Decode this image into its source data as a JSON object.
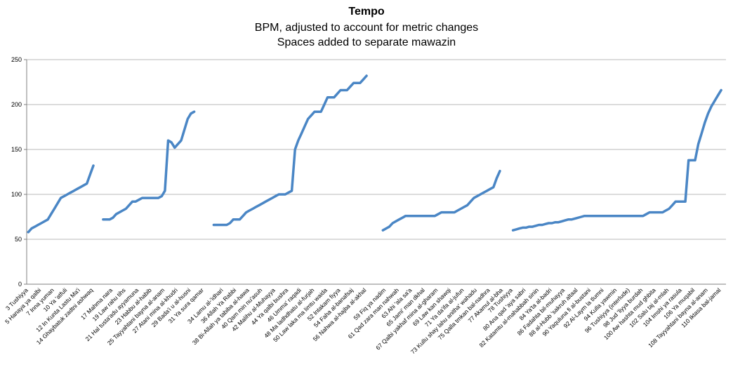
{
  "chart_data": {
    "type": "line",
    "title": "Tempo",
    "subtitle_lines": [
      "BPM, adjusted to account for metric changes",
      "Spaces added to separate mawazin"
    ],
    "ylim": [
      0,
      250
    ],
    "yticks": [
      0,
      50,
      100,
      150,
      200,
      250
    ],
    "grid": true,
    "legend": "none",
    "line_color": "#4a86c5",
    "x_labels": [
      "3 Tushiyya",
      "5 Hanaya ya qalbi",
      "7 Inna yuman",
      "10 Ya 'atfuli",
      "12 In Kunta Lastu Ma'i",
      "14 Ghaybatuk zadtni ashwaq",
      "17 Mahma nara",
      "19 Law rahu tihs",
      "21 Hal tusta'adu ayyamuna",
      "23 Habbu al-habib",
      "25 Tayyahtani bayna al-anam",
      "27 Atani mina al-khudri",
      "29 Bada'i u al-husni",
      "31 Ya sura qamar",
      "34 Lamu al-'idhari",
      "36 Allah Ya Rabbi",
      "38 Bi-Allah ya tabiba al-hawa",
      "40 Qam min nu'asuh",
      "42 Malihu al-Muhayya",
      "44 Ya qalbi bushra",
      "46 Umma' raqadi",
      "48 Ma ladhdhatu al-furjah",
      "50 Law laka ma limtu waida",
      "52 Intakam fiyya",
      "54 Faha al-banafsaj",
      "56 Nahwa al-hajba al-akhal",
      "59 Fiq ya nadim",
      "61 Qad zara man nahwah",
      "63 Ahi 'ala sa'a",
      "65 Jami' man dkhal",
      "67 Qalbi yakhaf mina al-gharam",
      "69 Law kan shawqi",
      "71 Ya da'ifa al-jufun",
      "73 Kullu shay lahu anitha' wahadu",
      "75 Qalla tmkan bal-nadhra",
      "77 Akamul al-bha",
      "78 Tushiyya",
      "80 Ana qad 'aya sabri",
      "82 Katamtu al-mahabbah sinin",
      "84 Ya'ta al-badri",
      "86 Fadahta bil-muhayya",
      "88 al-Hubb 'sakruh altaal",
      "90 Yaquluna fi al-bustani",
      "92 Al-Laym la tlumni",
      "94 Kulla yawmin",
      "96 Tushiyya (interlude)",
      "98 Jud 'liyya burdah",
      "100 Aw hashta mud ghbita",
      "102 Salu taj al-mlah",
      "104 Imshi ya rasula",
      "106 Ya muqabil",
      "108 Tayyahtani bayna al-anam",
      "110 Iktasa bal-jamal"
    ],
    "x_label_positions": [
      0,
      4,
      8,
      12,
      16,
      20,
      26,
      30,
      34,
      38,
      42,
      46,
      50,
      54,
      60,
      64,
      68,
      72,
      76,
      80,
      84,
      88,
      92,
      96,
      100,
      104,
      110,
      114,
      118,
      122,
      126,
      130,
      134,
      138,
      142,
      146,
      149,
      153,
      157,
      161,
      165,
      169,
      173,
      177,
      181,
      185,
      189,
      193,
      197,
      201,
      205,
      209,
      213
    ],
    "series": [
      {
        "x": [
          0,
          1,
          2,
          3,
          4,
          5,
          6,
          7,
          8,
          9,
          10,
          11,
          12,
          13,
          14,
          15,
          16,
          17,
          18,
          19,
          20,
          21
        ],
        "y": [
          58,
          62,
          64,
          66,
          68,
          70,
          72,
          78,
          84,
          90,
          96,
          98,
          100,
          102,
          104,
          106,
          108,
          110,
          112,
          122,
          132,
          null
        ]
      },
      {
        "x": [
          23,
          24,
          25,
          26,
          27,
          28,
          29,
          30,
          31,
          32,
          33,
          34,
          35,
          36,
          37,
          38,
          39,
          40,
          41,
          42,
          43,
          44,
          45,
          46,
          47,
          48,
          49,
          50,
          51,
          52,
          53,
          54,
          55
        ],
        "y": [
          72,
          72,
          72,
          74,
          78,
          80,
          82,
          84,
          88,
          92,
          92,
          94,
          96,
          96,
          96,
          96,
          96,
          96,
          98,
          104,
          160,
          158,
          152,
          156,
          160,
          172,
          184,
          190,
          192,
          null,
          null,
          null,
          null
        ]
      },
      {
        "x": [
          57,
          58,
          59,
          60,
          61,
          62,
          63,
          64,
          65,
          66,
          67,
          68,
          69,
          70,
          71,
          72,
          73,
          74,
          75,
          76,
          77,
          78,
          79,
          80,
          81,
          82,
          83,
          84,
          85,
          86,
          87,
          88,
          89,
          90,
          91,
          92,
          93,
          94,
          95,
          96,
          97,
          98,
          99,
          100,
          101,
          102,
          103,
          104,
          105,
          106
        ],
        "y": [
          66,
          66,
          66,
          66,
          66,
          68,
          72,
          72,
          72,
          76,
          80,
          82,
          84,
          86,
          88,
          90,
          92,
          94,
          96,
          98,
          100,
          100,
          100,
          102,
          104,
          150,
          160,
          168,
          176,
          184,
          188,
          192,
          192,
          192,
          200,
          208,
          208,
          208,
          212,
          216,
          216,
          216,
          220,
          224,
          224,
          224,
          228,
          232,
          null,
          null
        ]
      },
      {
        "x": [
          109,
          110,
          111,
          112,
          113,
          114,
          115,
          116,
          117,
          118,
          119,
          120,
          121,
          122,
          123,
          124,
          125,
          126,
          127,
          128,
          129,
          130,
          131,
          132,
          133,
          134,
          135,
          136,
          137,
          138,
          139,
          140,
          141,
          142,
          143,
          144,
          145,
          146
        ],
        "y": [
          60,
          62,
          64,
          68,
          70,
          72,
          74,
          76,
          76,
          76,
          76,
          76,
          76,
          76,
          76,
          76,
          76,
          78,
          80,
          80,
          80,
          80,
          80,
          82,
          84,
          86,
          88,
          92,
          96,
          98,
          100,
          102,
          104,
          106,
          108,
          118,
          126,
          null
        ]
      },
      {
        "x": [
          149,
          150,
          151,
          152,
          153,
          154,
          155,
          156,
          157,
          158,
          159,
          160,
          161,
          162,
          163,
          164,
          165,
          166,
          167,
          168,
          169,
          170,
          171,
          172,
          173,
          174,
          175,
          176,
          177,
          178,
          179,
          180,
          181,
          182,
          183,
          184,
          185,
          186,
          187,
          188,
          189,
          190,
          191,
          192,
          193,
          194,
          195,
          196,
          197,
          198,
          199,
          200,
          201,
          202,
          203,
          204,
          205,
          206,
          207,
          208,
          209,
          210,
          211,
          212,
          213
        ],
        "y": [
          60,
          61,
          62,
          63,
          63,
          64,
          64,
          65,
          66,
          66,
          67,
          68,
          68,
          69,
          69,
          70,
          71,
          72,
          72,
          73,
          74,
          75,
          76,
          76,
          76,
          76,
          76,
          76,
          76,
          76,
          76,
          76,
          76,
          76,
          76,
          76,
          76,
          76,
          76,
          76,
          76,
          78,
          80,
          80,
          80,
          80,
          80,
          82,
          84,
          88,
          92,
          92,
          92,
          92,
          138,
          138,
          138,
          156,
          168,
          180,
          190,
          198,
          204,
          210,
          216
        ]
      }
    ]
  }
}
